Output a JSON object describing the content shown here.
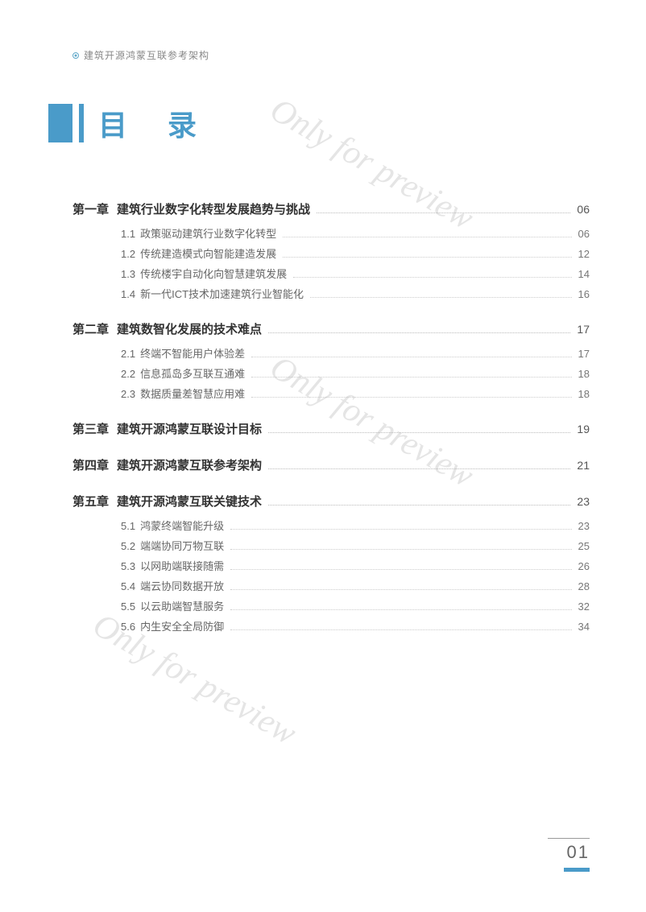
{
  "header": {
    "text": "建筑开源鸿蒙互联参考架构"
  },
  "title": "目 录",
  "watermark": "Only for preview",
  "page_number": "01",
  "colors": {
    "accent": "#4a9bc9",
    "text_primary": "#333333",
    "text_secondary": "#666666",
    "text_muted": "#888888"
  },
  "chapters": [
    {
      "label": "第一章",
      "title": "建筑行业数字化转型发展趋势与挑战",
      "page": "06",
      "sections": [
        {
          "label": "1.1",
          "title": "政策驱动建筑行业数字化转型",
          "page": "06"
        },
        {
          "label": "1.2",
          "title": "传统建造模式向智能建造发展",
          "page": "12"
        },
        {
          "label": "1.3",
          "title": "传统楼宇自动化向智慧建筑发展",
          "page": "14"
        },
        {
          "label": "1.4",
          "title": "新一代ICT技术加速建筑行业智能化",
          "page": "16"
        }
      ]
    },
    {
      "label": "第二章",
      "title": "建筑数智化发展的技术难点",
      "page": "17",
      "sections": [
        {
          "label": "2.1",
          "title": "终端不智能用户体验差",
          "page": "17"
        },
        {
          "label": "2.2",
          "title": "信息孤岛多互联互通难",
          "page": "18"
        },
        {
          "label": "2.3",
          "title": "数据质量差智慧应用难",
          "page": "18"
        }
      ]
    },
    {
      "label": "第三章",
      "title": "建筑开源鸿蒙互联设计目标",
      "page": "19",
      "sections": []
    },
    {
      "label": "第四章",
      "title": "建筑开源鸿蒙互联参考架构",
      "page": "21",
      "sections": []
    },
    {
      "label": "第五章",
      "title": "建筑开源鸿蒙互联关键技术",
      "page": "23",
      "sections": [
        {
          "label": "5.1",
          "title": "鸿蒙终端智能升级",
          "page": "23"
        },
        {
          "label": "5.2",
          "title": "端端协同万物互联",
          "page": "25"
        },
        {
          "label": "5.3",
          "title": "以网助端联接随需",
          "page": "26"
        },
        {
          "label": "5.4",
          "title": "端云协同数据开放",
          "page": "28"
        },
        {
          "label": "5.5",
          "title": "以云助端智慧服务",
          "page": "32"
        },
        {
          "label": "5.6",
          "title": "内生安全全局防御",
          "page": "34"
        }
      ]
    }
  ]
}
